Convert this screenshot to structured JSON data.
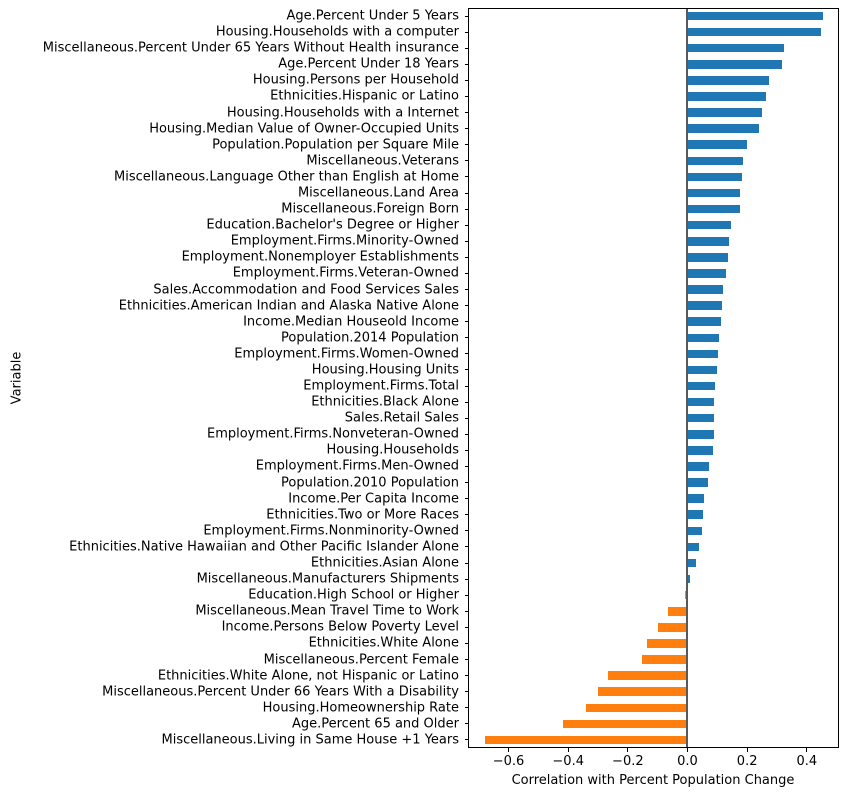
{
  "chart_data": {
    "type": "bar",
    "orientation": "horizontal",
    "title": "",
    "xlabel": "Correlation with Percent Population Change",
    "ylabel": "Variable",
    "xlim": [
      -0.736,
      0.508
    ],
    "x_ticks": [
      -0.6,
      -0.4,
      -0.2,
      0.0,
      0.2,
      0.4
    ],
    "x_tick_labels": [
      "−0.6",
      "−0.4",
      "−0.2",
      "0.0",
      "0.2",
      "0.4"
    ],
    "grid": false,
    "legend": "none",
    "positive_color": "#1f77b4",
    "negative_color": "#ff7f0e",
    "zero_line_color": "#595959",
    "categories": [
      "Age.Percent Under 5 Years",
      "Housing.Households with a computer",
      "Miscellaneous.Percent Under 65 Years Without Health insurance",
      "Age.Percent Under 18 Years",
      "Housing.Persons per Household",
      "Ethnicities.Hispanic or Latino",
      "Housing.Households with a Internet",
      "Housing.Median Value of Owner-Occupied Units",
      "Population.Population per Square Mile",
      "Miscellaneous.Veterans",
      "Miscellaneous.Language Other than English at Home",
      "Miscellaneous.Land Area",
      "Miscellaneous.Foreign Born",
      "Education.Bachelor's Degree or Higher",
      "Employment.Firms.Minority-Owned",
      "Employment.Nonemployer Establishments",
      "Employment.Firms.Veteran-Owned",
      "Sales.Accommodation and Food Services Sales",
      "Ethnicities.American Indian and Alaska Native Alone",
      "Income.Median Houseold Income",
      "Population.2014 Population",
      "Employment.Firms.Women-Owned",
      "Housing.Housing Units",
      "Employment.Firms.Total",
      "Ethnicities.Black Alone",
      "Sales.Retail Sales",
      "Employment.Firms.Nonveteran-Owned",
      "Housing.Households",
      "Employment.Firms.Men-Owned",
      "Population.2010 Population",
      "Income.Per Capita Income",
      "Ethnicities.Two or More Races",
      "Employment.Firms.Nonminority-Owned",
      "Ethnicities.Native Hawaiian and Other Pacific Islander Alone",
      "Ethnicities.Asian Alone",
      "Miscellaneous.Manufacturers Shipments",
      "Education.High School or Higher",
      "Miscellaneous.Mean Travel Time to Work",
      "Income.Persons Below Poverty Level",
      "Ethnicities.White Alone",
      "Miscellaneous.Percent Female",
      "Ethnicities.White Alone, not Hispanic or Latino",
      "Miscellaneous.Percent Under 66 Years With a Disability",
      "Housing.Homeownership Rate",
      "Age.Percent 65 and Older",
      "Miscellaneous.Living in Same House +1 Years"
    ],
    "values": [
      0.453,
      0.447,
      0.324,
      0.317,
      0.274,
      0.264,
      0.251,
      0.24,
      0.2,
      0.187,
      0.184,
      0.177,
      0.176,
      0.146,
      0.14,
      0.136,
      0.13,
      0.12,
      0.116,
      0.113,
      0.106,
      0.103,
      0.1,
      0.093,
      0.09,
      0.09,
      0.089,
      0.085,
      0.072,
      0.07,
      0.056,
      0.053,
      0.05,
      0.037,
      0.029,
      0.008,
      -0.008,
      -0.066,
      -0.099,
      -0.135,
      -0.151,
      -0.266,
      -0.301,
      -0.34,
      -0.419,
      -0.68
    ]
  }
}
